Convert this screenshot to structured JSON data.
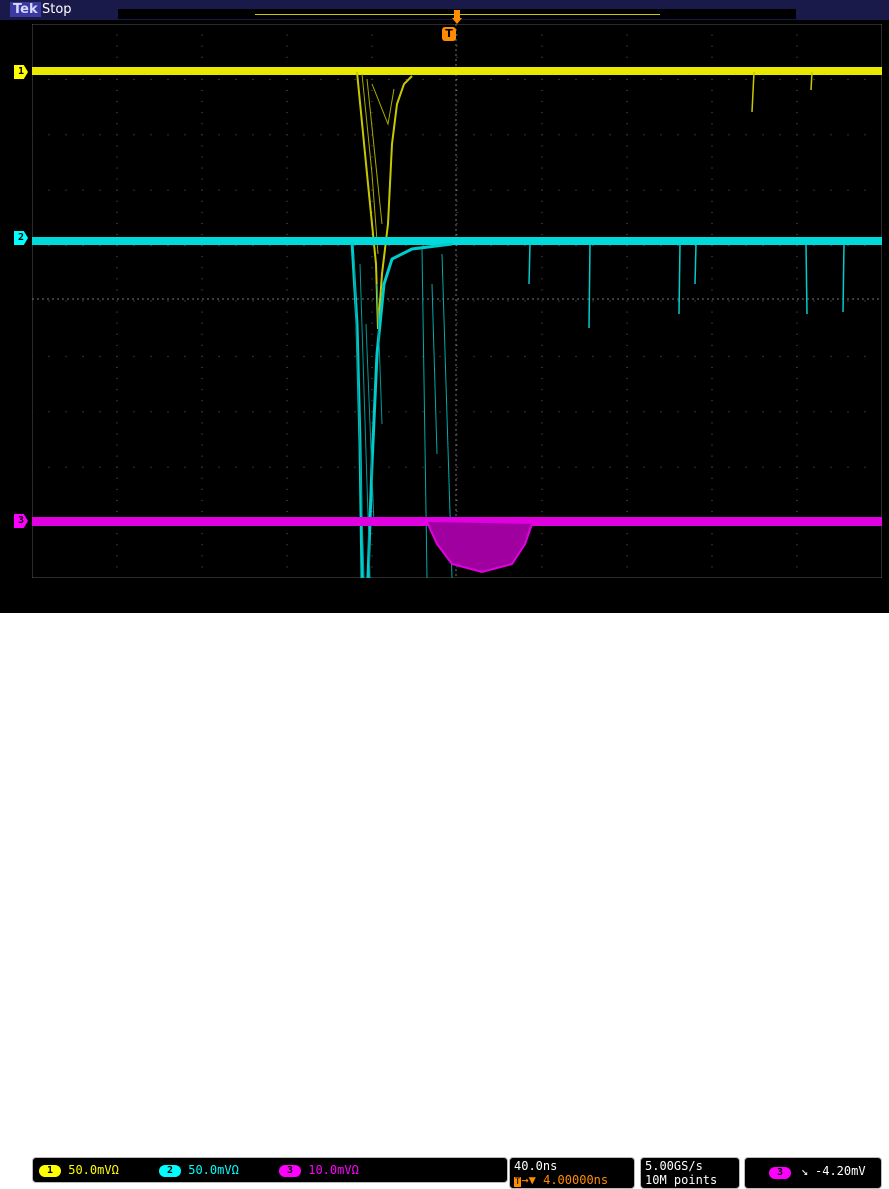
{
  "header": {
    "brand": "Tek",
    "run_state": "Stop"
  },
  "trigger": {
    "marker_label": "T"
  },
  "channels": [
    {
      "id": "1",
      "color": "#ffff00",
      "scale": "50.0mV",
      "coupling_symbol": "Ω"
    },
    {
      "id": "2",
      "color": "#00ffff",
      "scale": "50.0mV",
      "coupling_symbol": "Ω"
    },
    {
      "id": "3",
      "color": "#ff00ff",
      "scale": "10.0mV",
      "coupling_symbol": "Ω"
    }
  ],
  "horizontal": {
    "time_per_div": "40.0ns",
    "trigger_position": "4.00000ns"
  },
  "acquisition": {
    "sample_rate": "5.00GS/s",
    "record_length": "10M points"
  },
  "trigger_settings": {
    "source": "3",
    "slope_symbol": "↘",
    "level": "-4.20mV"
  }
}
